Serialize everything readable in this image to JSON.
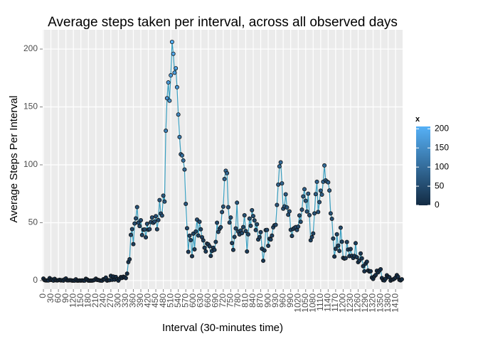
{
  "chart_data": {
    "type": "line",
    "title": "Average steps taken per interval, across all observed days",
    "xlabel": "Interval (30-minutes time)",
    "ylabel": "Average Steps Per Interval",
    "x": [
      0,
      5,
      10,
      15,
      20,
      25,
      30,
      35,
      40,
      45,
      50,
      55,
      60,
      65,
      70,
      75,
      80,
      85,
      90,
      95,
      100,
      105,
      110,
      115,
      120,
      125,
      130,
      135,
      140,
      145,
      150,
      155,
      160,
      165,
      170,
      175,
      180,
      185,
      190,
      195,
      200,
      205,
      210,
      215,
      220,
      225,
      230,
      235,
      240,
      245,
      250,
      255,
      260,
      265,
      270,
      275,
      280,
      285,
      290,
      295,
      300,
      305,
      310,
      315,
      320,
      325,
      330,
      335,
      340,
      345,
      350,
      355,
      360,
      365,
      370,
      375,
      380,
      385,
      390,
      395,
      400,
      405,
      410,
      415,
      420,
      425,
      430,
      435,
      440,
      445,
      450,
      455,
      460,
      465,
      470,
      475,
      480,
      485,
      490,
      495,
      500,
      505,
      510,
      515,
      520,
      525,
      530,
      535,
      540,
      545,
      550,
      555,
      560,
      565,
      570,
      575,
      580,
      585,
      590,
      595,
      600,
      605,
      610,
      615,
      620,
      625,
      630,
      635,
      640,
      645,
      650,
      655,
      660,
      665,
      670,
      675,
      680,
      685,
      690,
      695,
      700,
      705,
      710,
      715,
      720,
      725,
      730,
      735,
      740,
      745,
      750,
      755,
      760,
      765,
      770,
      775,
      780,
      785,
      790,
      795,
      800,
      805,
      810,
      815,
      820,
      825,
      830,
      835,
      840,
      845,
      850,
      855,
      860,
      865,
      870,
      875,
      880,
      885,
      890,
      895,
      900,
      905,
      910,
      915,
      920,
      925,
      930,
      935,
      940,
      945,
      950,
      955,
      960,
      965,
      970,
      975,
      980,
      985,
      990,
      995,
      1000,
      1005,
      1010,
      1015,
      1020,
      1025,
      1030,
      1035,
      1040,
      1045,
      1050,
      1055,
      1060,
      1065,
      1070,
      1075,
      1080,
      1085,
      1090,
      1095,
      1100,
      1105,
      1110,
      1115,
      1120,
      1125,
      1130,
      1135,
      1140,
      1145,
      1150,
      1155,
      1160,
      1165,
      1170,
      1175,
      1180,
      1185,
      1190,
      1195,
      1200,
      1205,
      1210,
      1215,
      1220,
      1225,
      1230,
      1235,
      1240,
      1245,
      1250,
      1255,
      1260,
      1265,
      1270,
      1275,
      1280,
      1285,
      1290,
      1295,
      1300,
      1305,
      1310,
      1315,
      1320,
      1325,
      1330,
      1335,
      1340,
      1345,
      1350,
      1355,
      1360,
      1365,
      1370,
      1375,
      1380,
      1385,
      1390,
      1395,
      1400,
      1405,
      1410,
      1415,
      1420,
      1425,
      1430,
      1435
    ],
    "series": [
      {
        "color": "#3a9fc0",
        "values": [
          1.72,
          0.34,
          0.13,
          0.15,
          0.08,
          2.09,
          0.53,
          0.87,
          0,
          1.47,
          0.3,
          0.13,
          0.32,
          0.68,
          0.15,
          0.34,
          0,
          1.11,
          1.83,
          0.17,
          0.17,
          0.38,
          0.26,
          0,
          0,
          0,
          1.13,
          0,
          0,
          0.13,
          0,
          0.23,
          0,
          0,
          1.55,
          0.94,
          0,
          0,
          0,
          0,
          0.21,
          0.62,
          1.62,
          0.58,
          0.49,
          0.08,
          0,
          0,
          1.19,
          0.94,
          2.57,
          0,
          0.34,
          0.36,
          4.11,
          0.66,
          3.49,
          0.83,
          3.11,
          1.11,
          0,
          1.57,
          3,
          2.25,
          3.32,
          2.96,
          2.09,
          6.06,
          16.02,
          18.34,
          39.45,
          44.49,
          31.49,
          49.26,
          53.77,
          63.45,
          49.96,
          47.08,
          52.15,
          39.34,
          44.02,
          44.17,
          37.36,
          49.04,
          43.81,
          44.38,
          50.51,
          54.51,
          49.92,
          50.98,
          55.68,
          44.32,
          52.26,
          69.55,
          57.85,
          56.15,
          73.38,
          68.21,
          129.43,
          157.53,
          171.15,
          155.4,
          177.3,
          206.17,
          195.92,
          179.57,
          183.4,
          167.02,
          143.45,
          124.04,
          109.11,
          108.11,
          103.72,
          95.96,
          66.21,
          45.23,
          24.79,
          38.75,
          34.98,
          21.06,
          40.57,
          26.98,
          42.42,
          52.66,
          38.92,
          50.79,
          44.28,
          37.42,
          34.7,
          28.34,
          25.09,
          31.94,
          31.36,
          29.68,
          21.32,
          25.55,
          28.38,
          26.47,
          33.43,
          49.98,
          42.04,
          44.6,
          46.04,
          59.19,
          63.87,
          87.7,
          94.85,
          92.77,
          63.4,
          50.17,
          54.47,
          32.42,
          26.53,
          37.74,
          45.06,
          67.28,
          42.34,
          39.89,
          43.26,
          40.98,
          46.25,
          56.43,
          42.75,
          25.13,
          39.96,
          53.55,
          47.32,
          60.81,
          55.75,
          51.96,
          43.58,
          48.7,
          35.47,
          37.55,
          41.85,
          27.51,
          17.11,
          26.08,
          43.62,
          43.77,
          30.02,
          36.08,
          35.49,
          38.85,
          45.96,
          47.75,
          48.13,
          65.32,
          82.91,
          98.66,
          102.11,
          83.96,
          62.13,
          64.13,
          74.55,
          63.17,
          56.91,
          59.77,
          43.87,
          38.57,
          44.66,
          45.45,
          46.21,
          43.68,
          46.62,
          56.3,
          50.72,
          61.23,
          72.72,
          78.94,
          68.94,
          59.66,
          75.09,
          56.51,
          34.77,
          37.45,
          40.68,
          58.02,
          74.7,
          85.32,
          59.26,
          67.77,
          77.7,
          74.25,
          85.34,
          99.45,
          86.58,
          85.6,
          84.87,
          77.83,
          58.04,
          53.36,
          36.32,
          20.72,
          27.4,
          40.02,
          30.21,
          25.55,
          45.66,
          33.53,
          19.62,
          19.02,
          19.34,
          33.34,
          26.81,
          21.17,
          27.3,
          21.34,
          19.55,
          21.32,
          32.3,
          20.15,
          15.94,
          17.23,
          23.45,
          19.25,
          12.45,
          8.02,
          14.66,
          16.3,
          8.68,
          7.79,
          8.13,
          2.62,
          1.45,
          3.68,
          4.81,
          8.51,
          7.08,
          8.7,
          9.75,
          2.21,
          0.32,
          0.11,
          1.6,
          4.6,
          3.3,
          2.85,
          0,
          0.83,
          0.96,
          1.58,
          2.6,
          4.7,
          3.3,
          0.64,
          0.23,
          1.08
        ]
      }
    ],
    "xlim": [
      -3,
      1438
    ],
    "xticks": [
      0,
      30,
      60,
      90,
      120,
      150,
      180,
      210,
      240,
      270,
      300,
      330,
      360,
      390,
      420,
      450,
      480,
      510,
      540,
      570,
      600,
      630,
      660,
      690,
      720,
      750,
      780,
      810,
      840,
      870,
      900,
      930,
      960,
      990,
      1020,
      1050,
      1080,
      1110,
      1140,
      1170,
      1200,
      1230,
      1260,
      1290,
      1320,
      1350,
      1380,
      1410
    ],
    "ylim": [
      -7.4,
      216.6
    ],
    "yticks": [
      0,
      50,
      100,
      150,
      200
    ],
    "grid": true,
    "colorscale": {
      "title": "x",
      "low": "#132B43",
      "high": "#56B1F7",
      "limits": [
        0,
        206.17
      ],
      "ticks": [
        0,
        50,
        100,
        150,
        200
      ]
    }
  }
}
